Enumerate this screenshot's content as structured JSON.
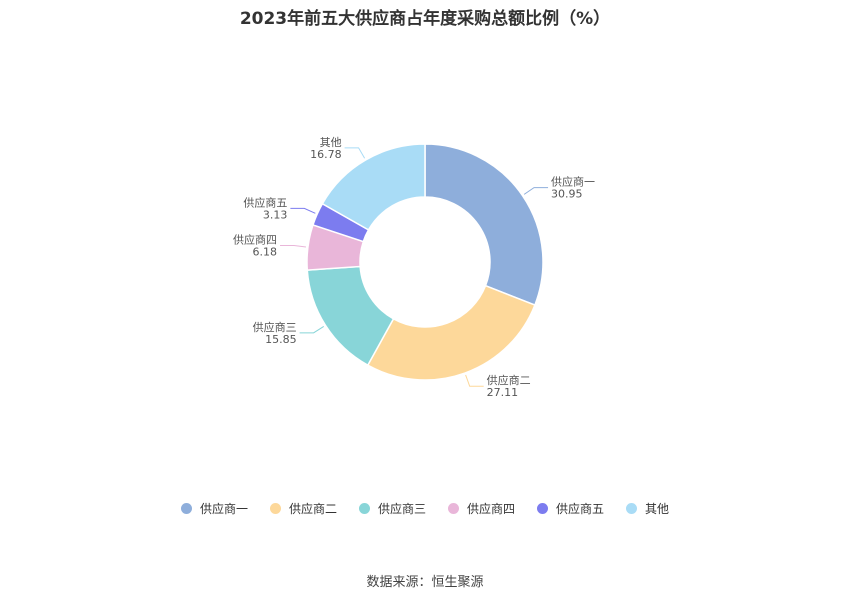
{
  "chart_data": {
    "type": "pie",
    "title": "2023年前五大供应商占年度采购总额比例（%）",
    "categories": [
      "供应商一",
      "供应商二",
      "供应商三",
      "供应商四",
      "供应商五",
      "其他"
    ],
    "values": [
      30.95,
      27.11,
      15.85,
      6.18,
      3.13,
      16.78
    ],
    "value_labels": [
      "30.95",
      "27.11",
      "15.85",
      "6.18",
      "3.13",
      "16.78"
    ],
    "colors": [
      "#8eaedb",
      "#fdd89a",
      "#88d5d8",
      "#e9b6d9",
      "#7c7cef",
      "#a9dcf6"
    ],
    "legend": "bottom"
  },
  "source": "数据来源：恒生聚源"
}
